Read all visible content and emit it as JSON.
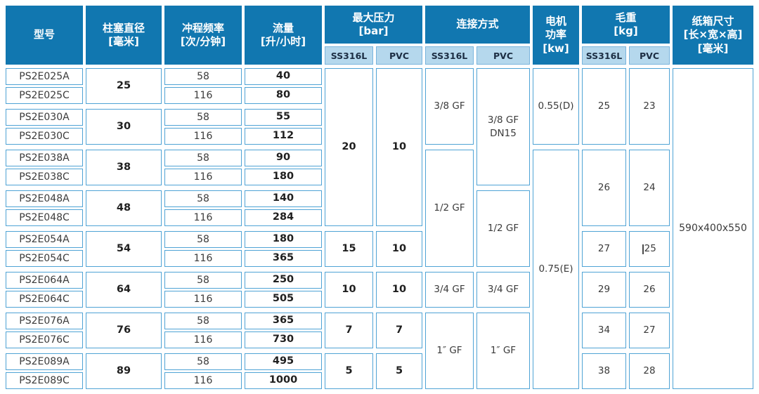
{
  "colors": {
    "header_bg": "#1177b0",
    "chip_bg": "#b5d8ed",
    "chip_border": "#79b4dd",
    "chip_text": "#1c2e44",
    "cell_border": "#4fa3d5",
    "text_dark": "#3b3b3b",
    "text_bold": "#1f1f1f"
  },
  "header": {
    "model": "型号",
    "diameter_line1": "柱塞直径",
    "diameter_line2": "[毫米]",
    "stroke_line1": "冲程频率",
    "stroke_line2": "[次/分钟]",
    "flow_line1": "流量",
    "flow_line2": "[升/小时]",
    "pressure_line1": "最大压力",
    "pressure_line2": "[bar]",
    "connection": "连接方式",
    "motor_line1": "电机",
    "motor_line2": "功率",
    "motor_line3": "[kw]",
    "weight_line1": "毛重",
    "weight_line2": "[kg]",
    "carton_line1": "纸箱尺寸",
    "carton_line2": "[长×宽×高]",
    "carton_line3": "[毫米]",
    "sub_ss316l": "SS316L",
    "sub_pvc": "PVC"
  },
  "body": {
    "models": [
      "PS2E025A",
      "PS2E025C",
      "PS2E030A",
      "PS2E030C",
      "PS2E038A",
      "PS2E038C",
      "PS2E048A",
      "PS2E048C",
      "PS2E054A",
      "PS2E054C",
      "PS2E064A",
      "PS2E064C",
      "PS2E076A",
      "PS2E076C",
      "PS2E089A",
      "PS2E089C"
    ],
    "diameters": [
      "25",
      "30",
      "38",
      "48",
      "54",
      "64",
      "76",
      "89"
    ],
    "strokes": [
      "58",
      "116",
      "58",
      "116",
      "58",
      "116",
      "58",
      "116",
      "58",
      "116",
      "58",
      "116",
      "58",
      "116",
      "58",
      "116"
    ],
    "flows": [
      "40",
      "80",
      "55",
      "112",
      "90",
      "180",
      "140",
      "284",
      "180",
      "365",
      "250",
      "505",
      "365",
      "730",
      "495",
      "1000"
    ],
    "pressure_ss316l": [
      "20",
      "15",
      "10",
      "7",
      "5"
    ],
    "pressure_pvc": [
      "10",
      "10",
      "10",
      "7",
      "5"
    ],
    "connection_ss316l": [
      "3/8 GF",
      "1/2 GF",
      "3/4 GF",
      "1″ GF"
    ],
    "connection_pvc_0_line1": "3/8 GF",
    "connection_pvc_0_line2": "DN15",
    "connection_pvc": [
      "1/2 GF",
      "3/4 GF",
      "1″ GF"
    ],
    "motor_power": [
      "0.55(D)",
      "0.75(E)"
    ],
    "weight_ss316l": [
      "25",
      "26",
      "27",
      "29",
      "34",
      "38"
    ],
    "weight_pvc": [
      "23",
      "24",
      "25",
      "26",
      "27",
      "28"
    ],
    "carton_size": "590x400x550"
  }
}
